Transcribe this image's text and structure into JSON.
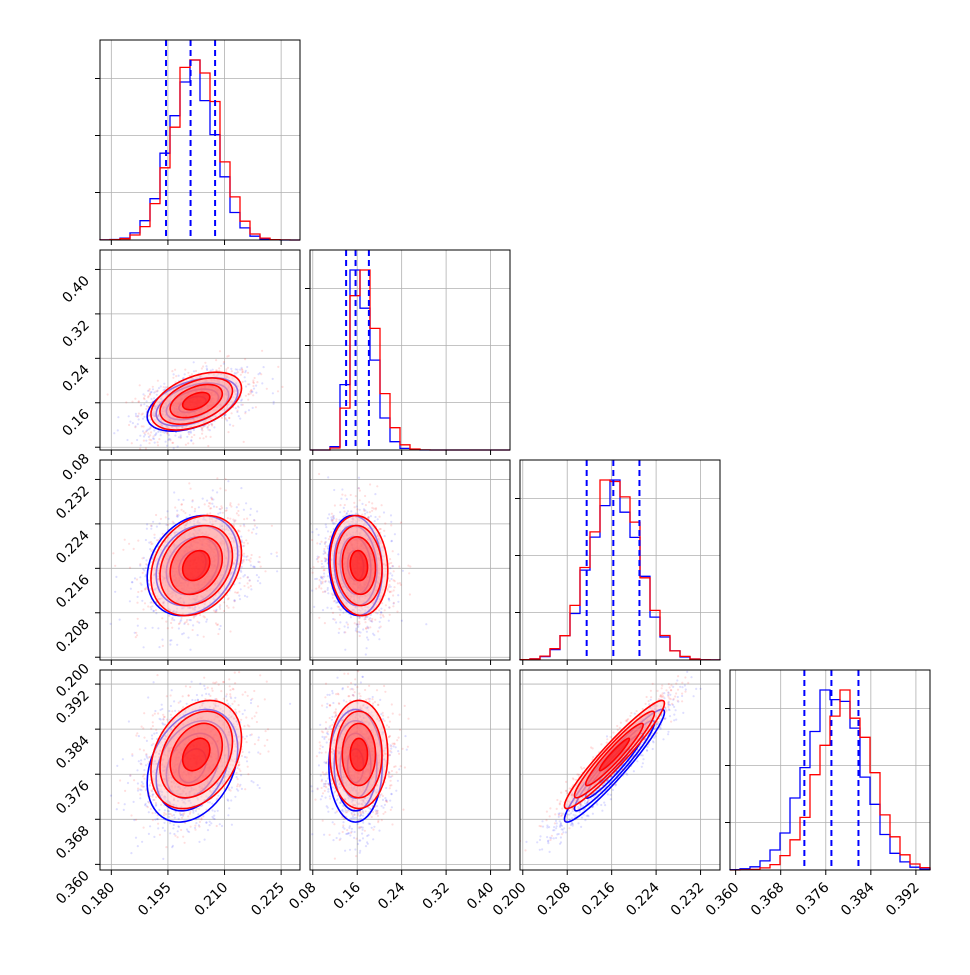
{
  "chart_data": {
    "type": "scatter",
    "subtype": "corner",
    "grid": true,
    "series_colors": [
      "#0000ff",
      "#ff0000"
    ],
    "ticks": {
      "p0": [
        "0.180",
        "0.195",
        "0.210",
        "0.225"
      ],
      "p1": [
        "0.08",
        "0.16",
        "0.24",
        "0.32",
        "0.40"
      ],
      "p2": [
        "0.200",
        "0.208",
        "0.216",
        "0.224",
        "0.232"
      ],
      "p3": [
        "0.360",
        "0.368",
        "0.376",
        "0.384",
        "0.392"
      ]
    },
    "ranges": {
      "p0": [
        0.177,
        0.23
      ],
      "p1": [
        0.075,
        0.435
      ],
      "p2": [
        0.1995,
        0.2355
      ],
      "p3": [
        0.359,
        0.3945
      ]
    },
    "distributions": [
      {
        "color": "#0000ff",
        "mean": [
          0.2015,
          0.157,
          0.2165,
          0.3775
        ],
        "sd": [
          0.006,
          0.024,
          0.0045,
          0.005
        ],
        "quantiles": {
          "p0": [
            0.1945,
            0.201,
            0.2075
          ],
          "p1": [
            0.14,
            0.157,
            0.181
          ],
          "p2": [
            0.2115,
            0.2163,
            0.221
          ],
          "p3": [
            0.3722,
            0.377,
            0.3818
          ]
        }
      },
      {
        "color": "#ff0000",
        "mean": [
          0.2025,
          0.163,
          0.2165,
          0.3795
        ],
        "sd": [
          0.006,
          0.026,
          0.0045,
          0.0048
        ]
      }
    ],
    "pair_correlation": {
      "p0-p1": 0.45,
      "p0-p2": 0.25,
      "p1-p2": -0.1,
      "p0-p3": 0.3,
      "p1-p3": 0.0,
      "p2-p3": 0.95
    }
  }
}
